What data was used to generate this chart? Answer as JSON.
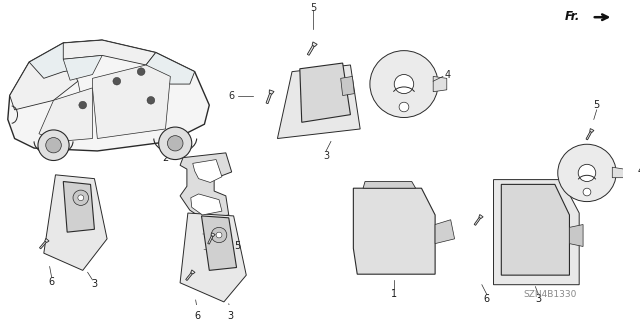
{
  "bg_color": "#ffffff",
  "part_number": "SZN4B1330",
  "fr_label": "FR.",
  "figure_width": 6.4,
  "figure_height": 3.19,
  "dpi": 100,
  "line_color": "#2a2a2a",
  "text_color": "#1a1a1a",
  "part_num_color": "#888888",
  "lw_main": 0.7,
  "lw_thin": 0.4,
  "gray_fill": "#e8e8e8",
  "white_fill": "#ffffff",
  "dark_fill": "#555555"
}
